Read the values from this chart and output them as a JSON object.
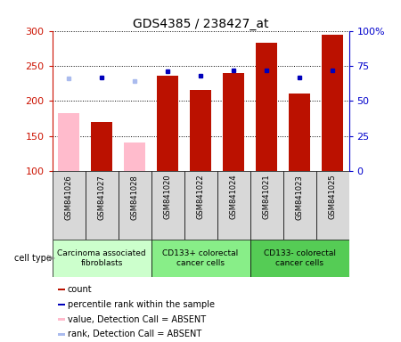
{
  "title": "GDS4385 / 238427_at",
  "samples": [
    "GSM841026",
    "GSM841027",
    "GSM841028",
    "GSM841020",
    "GSM841022",
    "GSM841024",
    "GSM841021",
    "GSM841023",
    "GSM841025"
  ],
  "count_values": [
    null,
    170,
    null,
    236,
    216,
    240,
    283,
    210,
    294
  ],
  "count_absent": [
    182,
    null,
    141,
    null,
    null,
    null,
    null,
    null,
    null
  ],
  "percentile_values": [
    null,
    67,
    null,
    71,
    68,
    72,
    72,
    67,
    72
  ],
  "percentile_absent": [
    66,
    null,
    64,
    null,
    null,
    null,
    null,
    null,
    null
  ],
  "ylim_left": [
    100,
    300
  ],
  "ylim_right": [
    0,
    100
  ],
  "yticks_left": [
    100,
    150,
    200,
    250,
    300
  ],
  "yticks_right": [
    0,
    25,
    50,
    75,
    100
  ],
  "ytick_labels_right": [
    "0",
    "25",
    "50",
    "75",
    "100%"
  ],
  "groups": [
    {
      "label": "Carcinoma associated\nfibroblasts",
      "indices": [
        0,
        1,
        2
      ]
    },
    {
      "label": "CD133+ colorectal\ncancer cells",
      "indices": [
        3,
        4,
        5
      ]
    },
    {
      "label": "CD133- colorectal\ncancer cells",
      "indices": [
        6,
        7,
        8
      ]
    }
  ],
  "group_colors": [
    "#ccffcc",
    "#88ee88",
    "#66dd66"
  ],
  "bar_width": 0.65,
  "bar_color_present": "#bb1100",
  "bar_color_absent": "#ffbbcc",
  "dot_color_present": "#0000bb",
  "dot_color_absent": "#aabbee",
  "left_axis_color": "#cc1100",
  "right_axis_color": "#0000cc",
  "cell_type_label": "cell type",
  "legend_items": [
    {
      "color": "#bb1100",
      "label": "count"
    },
    {
      "color": "#0000bb",
      "label": "percentile rank within the sample"
    },
    {
      "color": "#ffbbcc",
      "label": "value, Detection Call = ABSENT"
    },
    {
      "color": "#aabbee",
      "label": "rank, Detection Call = ABSENT"
    }
  ]
}
